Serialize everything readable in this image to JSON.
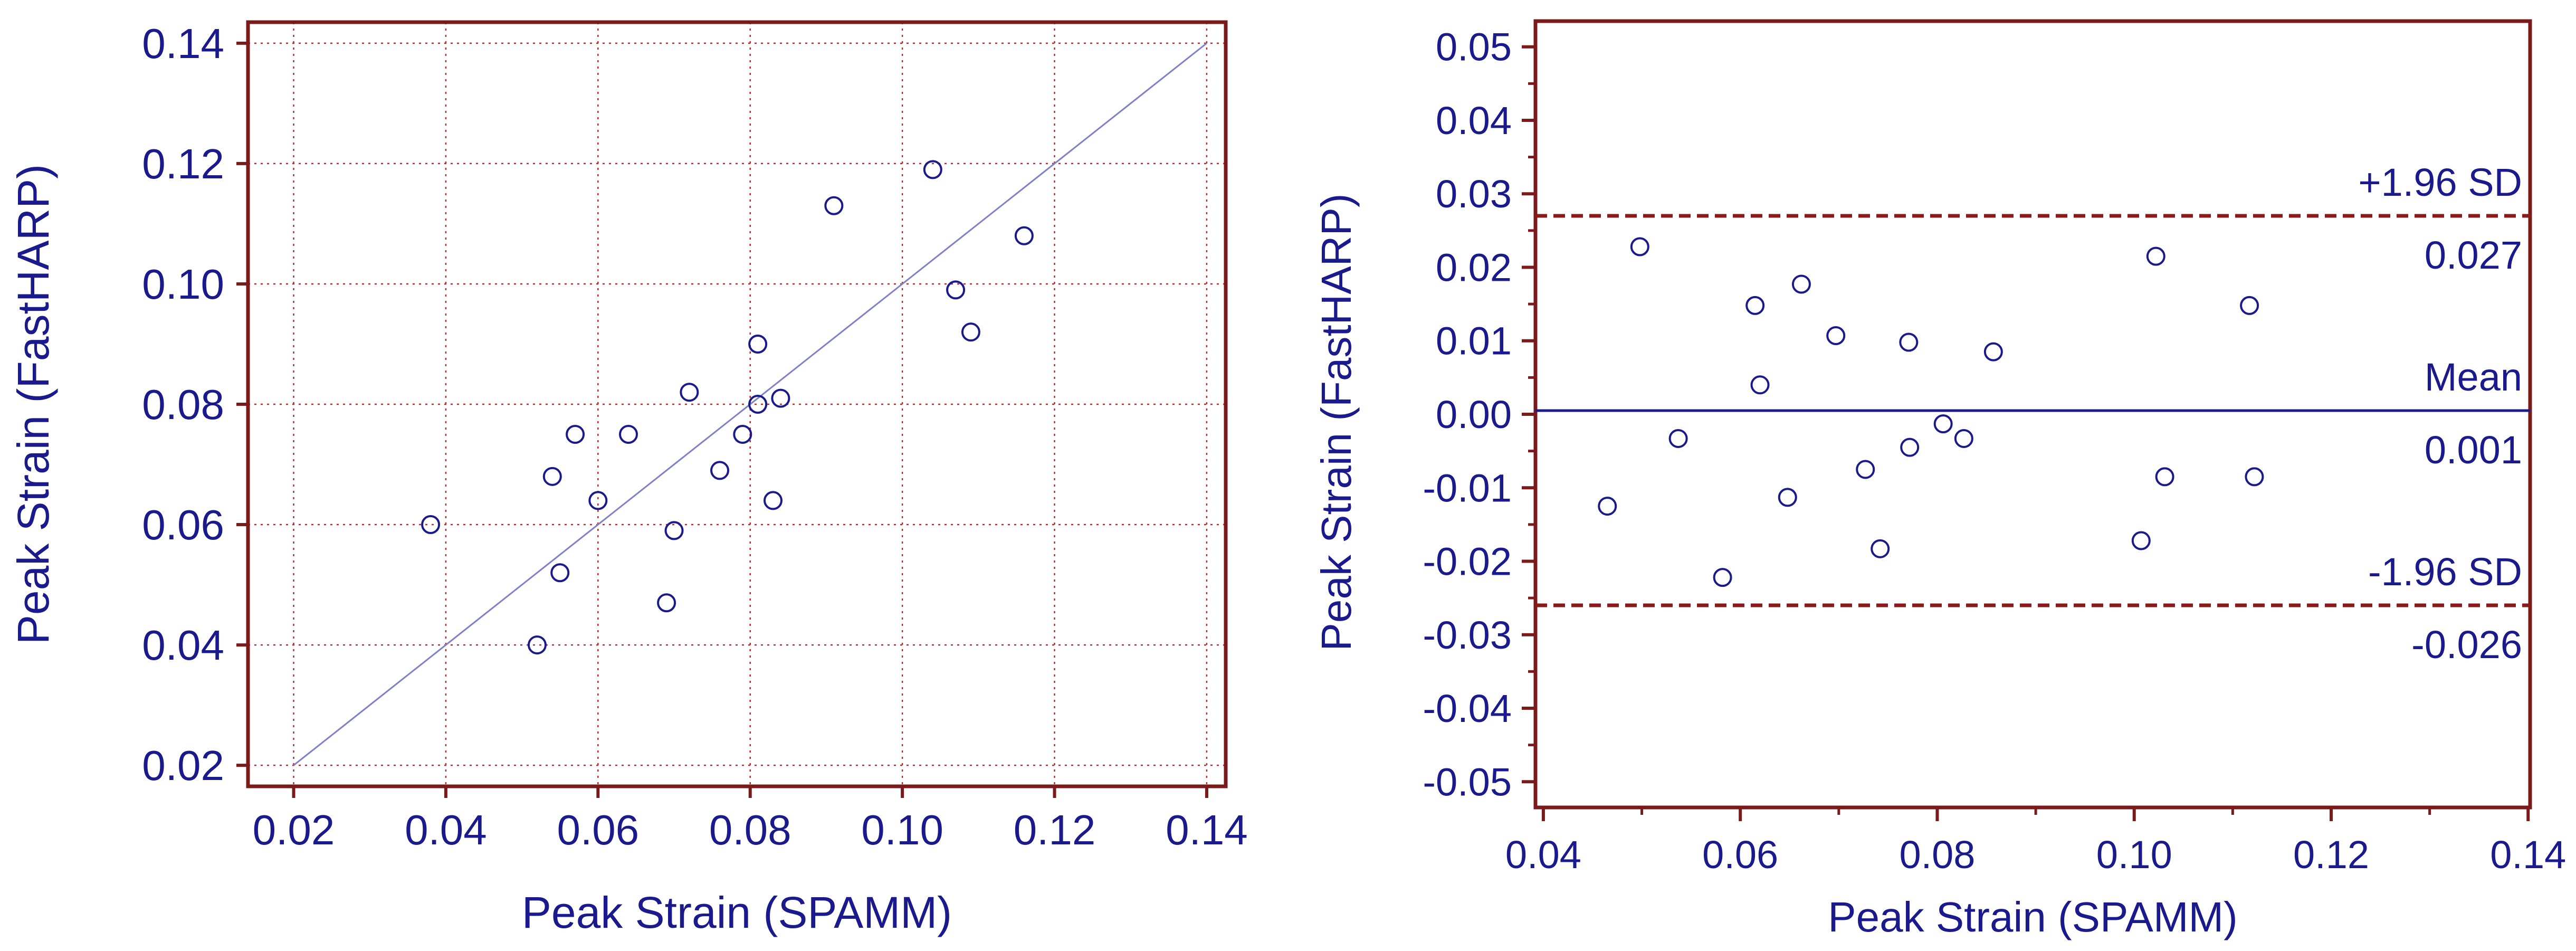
{
  "colors": {
    "frame": "#7b1a1a",
    "grid": "#b03030",
    "text": "#1a1a8c",
    "marker": "#1a1a8c",
    "identity_line": "#8080c8",
    "mean_line": "#1a1a8c",
    "sd_line": "#8b1a1a"
  },
  "chart_data": [
    {
      "type": "scatter",
      "title": "",
      "xlabel": "Peak Strain (SPAMM)",
      "ylabel": "Peak Strain (FastHARP)",
      "xlim": [
        0.02,
        0.14
      ],
      "ylim": [
        0.02,
        0.14
      ],
      "xticks": [
        "0.02",
        "0.04",
        "0.06",
        "0.08",
        "0.10",
        "0.12",
        "0.14"
      ],
      "yticks": [
        "0.02",
        "0.04",
        "0.06",
        "0.08",
        "0.10",
        "0.12",
        "0.14"
      ],
      "grid": true,
      "identity_line": true,
      "points": [
        {
          "x": 0.038,
          "y": 0.06
        },
        {
          "x": 0.052,
          "y": 0.04
        },
        {
          "x": 0.054,
          "y": 0.068
        },
        {
          "x": 0.055,
          "y": 0.052
        },
        {
          "x": 0.057,
          "y": 0.075
        },
        {
          "x": 0.06,
          "y": 0.064
        },
        {
          "x": 0.064,
          "y": 0.075
        },
        {
          "x": 0.069,
          "y": 0.047
        },
        {
          "x": 0.07,
          "y": 0.059
        },
        {
          "x": 0.072,
          "y": 0.082
        },
        {
          "x": 0.076,
          "y": 0.069
        },
        {
          "x": 0.079,
          "y": 0.075
        },
        {
          "x": 0.081,
          "y": 0.09
        },
        {
          "x": 0.081,
          "y": 0.08
        },
        {
          "x": 0.083,
          "y": 0.064
        },
        {
          "x": 0.084,
          "y": 0.081
        },
        {
          "x": 0.091,
          "y": 0.113
        },
        {
          "x": 0.104,
          "y": 0.119
        },
        {
          "x": 0.107,
          "y": 0.099
        },
        {
          "x": 0.109,
          "y": 0.092
        },
        {
          "x": 0.116,
          "y": 0.108
        }
      ]
    },
    {
      "type": "scatter",
      "title": "",
      "xlabel": "Peak Strain (SPAMM)",
      "ylabel": "Peak Strain (FastHARP)",
      "xlim": [
        0.04,
        0.14
      ],
      "ylim": [
        -0.053,
        0.053
      ],
      "xticks": [
        "0.04",
        "0.06",
        "0.08",
        "0.10",
        "0.12",
        "0.14"
      ],
      "yticks": [
        "0.05",
        "0.04",
        "0.03",
        "0.02",
        "0.01",
        "0.00",
        "-0.01",
        "-0.02",
        "-0.03",
        "-0.04",
        "-0.05"
      ],
      "grid": false,
      "reference_lines": [
        {
          "label": "+1.96 SD",
          "value_label": "0.027",
          "y": 0.027,
          "style": "dashed"
        },
        {
          "label": "Mean",
          "value_label": "0.001",
          "y": 0.0005,
          "style": "solid"
        },
        {
          "label": "-1.96 SD",
          "value_label": "-0.026",
          "y": -0.026,
          "style": "dashed"
        }
      ],
      "points": [
        {
          "x": 0.0465,
          "y": -0.0125
        },
        {
          "x": 0.0498,
          "y": 0.0228
        },
        {
          "x": 0.0537,
          "y": -0.0033
        },
        {
          "x": 0.0582,
          "y": -0.0222
        },
        {
          "x": 0.0615,
          "y": 0.0148
        },
        {
          "x": 0.062,
          "y": 0.004
        },
        {
          "x": 0.0648,
          "y": -0.0113
        },
        {
          "x": 0.0662,
          "y": 0.0177
        },
        {
          "x": 0.0697,
          "y": 0.0107
        },
        {
          "x": 0.0727,
          "y": -0.0075
        },
        {
          "x": 0.0742,
          "y": -0.0183
        },
        {
          "x": 0.0771,
          "y": 0.0098
        },
        {
          "x": 0.0772,
          "y": -0.0045
        },
        {
          "x": 0.0806,
          "y": -0.0013
        },
        {
          "x": 0.0827,
          "y": -0.0033
        },
        {
          "x": 0.0857,
          "y": 0.0085
        },
        {
          "x": 0.1007,
          "y": -0.0172
        },
        {
          "x": 0.1022,
          "y": 0.0215
        },
        {
          "x": 0.1031,
          "y": -0.0085
        },
        {
          "x": 0.1117,
          "y": 0.0148
        },
        {
          "x": 0.1122,
          "y": -0.0085
        }
      ]
    }
  ]
}
